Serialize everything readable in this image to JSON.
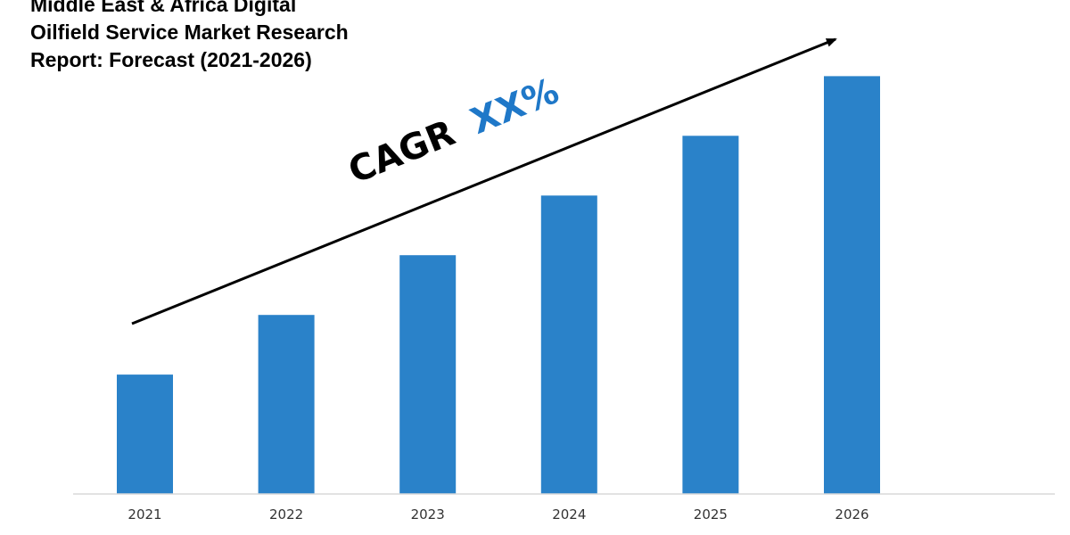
{
  "colors": {
    "bar": "#2a82c9",
    "accent": "#1f78c8",
    "text": "#000000",
    "axis": "#d9d9d9"
  },
  "chart_data": {
    "type": "bar",
    "title_lines": [
      "Middle East & Africa Digital",
      "Oilfield Service Market Research",
      "Report: Forecast (2021-2026)"
    ],
    "categories": [
      "2021",
      "2022",
      "2023",
      "2024",
      "2025",
      "2026"
    ],
    "values": [
      2,
      3,
      4,
      5,
      6,
      7
    ],
    "xlabel": "",
    "ylabel": "",
    "ylim": [
      0,
      7.2
    ],
    "grid": false,
    "legend": "none",
    "annotation": {
      "label": "CAGR",
      "value": "XX%",
      "arrow": "upward trend arrow"
    }
  }
}
